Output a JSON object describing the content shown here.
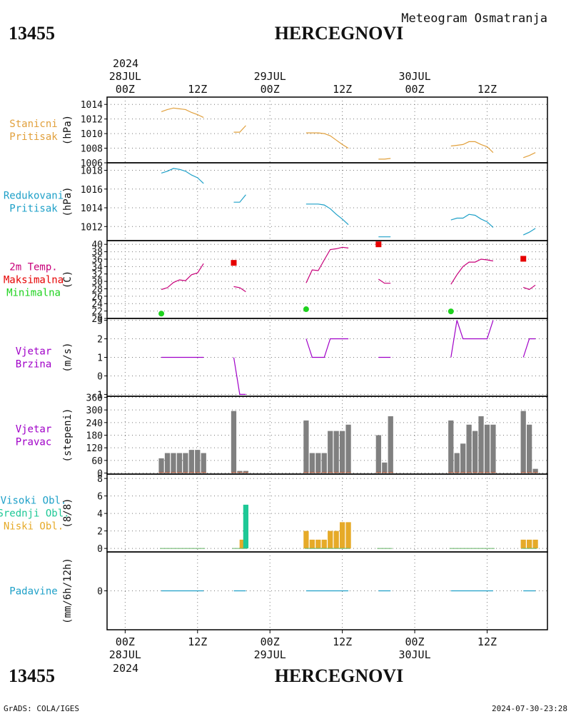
{
  "header": {
    "station_id": "13455",
    "station_name": "HERCEGNOVI",
    "subtitle": "Meteogram Osmatranja",
    "top_year": "2024"
  },
  "footer": {
    "station_id": "13455",
    "station_name": "HERCEGNOVI",
    "bottom_year": "2024",
    "credit": "GrADS: COLA/IGES",
    "timestamp": "2024-07-30-23:28"
  },
  "time_axis": {
    "top_dates": [
      "28JUL",
      "29JUL",
      "30JUL"
    ],
    "bottom_dates": [
      "28JUL",
      "29JUL",
      "30JUL"
    ],
    "ticks": [
      "00Z",
      "12Z",
      "00Z",
      "12Z",
      "00Z",
      "12Z"
    ],
    "tick_hours": [
      0,
      12,
      24,
      36,
      48,
      60
    ],
    "x_range_hours": [
      -3,
      70
    ]
  },
  "colors": {
    "orange": "#e1a03c",
    "cyan": "#1ea0c8",
    "magenta": "#c8007a",
    "red": "#e60000",
    "green": "#1ed21e",
    "purple": "#a000c8",
    "gray": "#808080",
    "teal": "#1ec896",
    "gold": "#e6aa28"
  },
  "chart_data": [
    {
      "type": "line",
      "panel_key": "pritisak",
      "label_lines": [
        "Stanicni",
        "Pritisak"
      ],
      "label_color": "#e1a03c",
      "ylabel": "(hPa)",
      "ylim": [
        1006,
        1015
      ],
      "yticks": [
        1006,
        1008,
        1010,
        1012,
        1014
      ],
      "series": [
        {
          "color": "#e1a03c",
          "segments": [
            [
              [
                6,
                1013.0
              ],
              [
                7,
                1013.3
              ],
              [
                8,
                1013.5
              ],
              [
                9,
                1013.4
              ],
              [
                10,
                1013.3
              ],
              [
                11,
                1012.9
              ],
              [
                12,
                1012.6
              ],
              [
                13,
                1012.2
              ]
            ],
            [
              [
                18,
                1010.2
              ],
              [
                19,
                1010.2
              ],
              [
                20,
                1011.1
              ]
            ],
            [
              [
                30,
                1010.1
              ],
              [
                31,
                1010.1
              ],
              [
                32,
                1010.1
              ],
              [
                33,
                1010.0
              ],
              [
                34,
                1009.7
              ],
              [
                35,
                1009.1
              ],
              [
                36,
                1008.5
              ],
              [
                37,
                1008.0
              ]
            ],
            [
              [
                42,
                1006.5
              ],
              [
                43,
                1006.5
              ],
              [
                44,
                1006.6
              ]
            ],
            [
              [
                54,
                1008.3
              ],
              [
                55,
                1008.4
              ],
              [
                56,
                1008.5
              ],
              [
                57,
                1008.9
              ],
              [
                58,
                1008.9
              ],
              [
                59,
                1008.5
              ],
              [
                60,
                1008.2
              ],
              [
                61,
                1007.4
              ]
            ],
            [
              [
                66,
                1006.7
              ],
              [
                67,
                1007.0
              ],
              [
                68,
                1007.4
              ]
            ]
          ]
        }
      ]
    },
    {
      "type": "line",
      "panel_key": "redukovani",
      "label_lines": [
        "Redukovani",
        "Pritisak"
      ],
      "label_color": "#1ea0c8",
      "ylabel": "(hPa)",
      "ylim": [
        1010.5,
        1018.8
      ],
      "yticks": [
        1012,
        1014,
        1016,
        1018
      ],
      "series": [
        {
          "color": "#1ea0c8",
          "segments": [
            [
              [
                6,
                1017.7
              ],
              [
                7,
                1017.9
              ],
              [
                8,
                1018.2
              ],
              [
                9,
                1018.1
              ],
              [
                10,
                1017.9
              ],
              [
                11,
                1017.5
              ],
              [
                12,
                1017.2
              ],
              [
                13,
                1016.6
              ]
            ],
            [
              [
                18,
                1014.6
              ],
              [
                19,
                1014.6
              ],
              [
                20,
                1015.4
              ]
            ],
            [
              [
                30,
                1014.4
              ],
              [
                31,
                1014.4
              ],
              [
                32,
                1014.4
              ],
              [
                33,
                1014.3
              ],
              [
                34,
                1013.9
              ],
              [
                35,
                1013.3
              ],
              [
                36,
                1012.8
              ],
              [
                37,
                1012.2
              ]
            ],
            [
              [
                42,
                1010.9
              ],
              [
                43,
                1010.9
              ],
              [
                44,
                1010.9
              ]
            ],
            [
              [
                54,
                1012.7
              ],
              [
                55,
                1012.9
              ],
              [
                56,
                1012.9
              ],
              [
                57,
                1013.3
              ],
              [
                58,
                1013.2
              ],
              [
                59,
                1012.8
              ],
              [
                60,
                1012.5
              ],
              [
                61,
                1011.9
              ]
            ],
            [
              [
                66,
                1011.1
              ],
              [
                67,
                1011.4
              ],
              [
                68,
                1011.8
              ]
            ]
          ]
        }
      ]
    },
    {
      "type": "line",
      "panel_key": "temperatura",
      "label_lines": [
        "2m Temp.",
        "Maksimalna",
        "Minimalna"
      ],
      "label_colors": [
        "#c8007a",
        "#e60000",
        "#1ed21e"
      ],
      "ylabel": "(C)",
      "ylim": [
        20,
        41
      ],
      "yticks": [
        20,
        22,
        24,
        26,
        28,
        30,
        32,
        34,
        36,
        38,
        40
      ],
      "series": [
        {
          "color": "#c8007a",
          "segments": [
            [
              [
                6,
                27.8
              ],
              [
                7,
                28.3
              ],
              [
                8,
                29.7
              ],
              [
                9,
                30.4
              ],
              [
                10,
                30.2
              ],
              [
                11,
                31.8
              ],
              [
                12,
                32.3
              ],
              [
                13,
                34.8
              ]
            ],
            [
              [
                18,
                28.6
              ],
              [
                19,
                28.3
              ],
              [
                20,
                27.2
              ]
            ],
            [
              [
                30,
                29.6
              ],
              [
                31,
                33.1
              ],
              [
                32,
                32.9
              ],
              [
                33,
                35.8
              ],
              [
                34,
                38.6
              ],
              [
                35,
                38.8
              ],
              [
                36,
                39.2
              ],
              [
                37,
                39.0
              ]
            ],
            [
              [
                42,
                30.6
              ],
              [
                43,
                29.5
              ],
              [
                44,
                29.5
              ]
            ],
            [
              [
                54,
                29.2
              ],
              [
                55,
                31.8
              ],
              [
                56,
                34.0
              ],
              [
                57,
                35.2
              ],
              [
                58,
                35.2
              ],
              [
                59,
                36.0
              ],
              [
                60,
                35.8
              ],
              [
                61,
                35.5
              ]
            ],
            [
              [
                66,
                28.4
              ],
              [
                67,
                27.8
              ],
              [
                68,
                29.0
              ]
            ]
          ]
        }
      ],
      "maxima": [
        [
          18,
          35.0
        ],
        [
          42,
          40.0
        ],
        [
          66,
          36.1
        ]
      ],
      "minima": [
        [
          6,
          21.3
        ],
        [
          30,
          22.5
        ],
        [
          54,
          21.9
        ]
      ]
    },
    {
      "type": "line",
      "panel_key": "vjetar_brzina",
      "label_lines": [
        "Vjetar",
        "Brzina"
      ],
      "label_color": "#a000c8",
      "ylabel": "(m/s)",
      "ylim": [
        -1.1,
        3.1
      ],
      "yticks": [
        -1,
        0,
        1,
        2,
        3
      ],
      "series": [
        {
          "color": "#a000c8",
          "segments": [
            [
              [
                6,
                1
              ],
              [
                7,
                1
              ],
              [
                8,
                1
              ],
              [
                9,
                1
              ],
              [
                10,
                1
              ],
              [
                11,
                1
              ],
              [
                12,
                1
              ],
              [
                13,
                1
              ]
            ],
            [
              [
                18,
                1
              ],
              [
                19,
                -1
              ],
              [
                20,
                -1
              ]
            ],
            [
              [
                30,
                2
              ],
              [
                31,
                1
              ],
              [
                32,
                1
              ],
              [
                33,
                1
              ],
              [
                34,
                2
              ],
              [
                35,
                2
              ],
              [
                36,
                2
              ],
              [
                37,
                2
              ]
            ],
            [
              [
                42,
                1
              ],
              [
                43,
                1
              ],
              [
                44,
                1
              ]
            ],
            [
              [
                54,
                1
              ],
              [
                55,
                3
              ],
              [
                56,
                2
              ],
              [
                57,
                2
              ],
              [
                58,
                2
              ],
              [
                59,
                2
              ],
              [
                60,
                2
              ],
              [
                61,
                3
              ]
            ],
            [
              [
                66,
                1
              ],
              [
                67,
                2
              ],
              [
                68,
                2
              ]
            ]
          ]
        }
      ]
    },
    {
      "type": "bar",
      "panel_key": "vjetar_pravac",
      "label_lines": [
        "Vjetar",
        "Pravac"
      ],
      "label_color": "#a000c8",
      "ylabel": "(stepeni)",
      "ylim": [
        -5,
        365
      ],
      "yticks": [
        0,
        60,
        120,
        180,
        240,
        300,
        360
      ],
      "bar_color": "#808080",
      "bars": [
        [
          6,
          70
        ],
        [
          7,
          95
        ],
        [
          8,
          95
        ],
        [
          9,
          95
        ],
        [
          10,
          95
        ],
        [
          11,
          110
        ],
        [
          12,
          110
        ],
        [
          13,
          95
        ],
        [
          18,
          295
        ],
        [
          19,
          10
        ],
        [
          20,
          10
        ],
        [
          30,
          250
        ],
        [
          31,
          95
        ],
        [
          32,
          95
        ],
        [
          33,
          95
        ],
        [
          34,
          200
        ],
        [
          35,
          200
        ],
        [
          36,
          200
        ],
        [
          37,
          230
        ],
        [
          42,
          180
        ],
        [
          43,
          50
        ],
        [
          44,
          270
        ],
        [
          54,
          250
        ],
        [
          55,
          95
        ],
        [
          56,
          140
        ],
        [
          57,
          230
        ],
        [
          58,
          200
        ],
        [
          59,
          270
        ],
        [
          60,
          230
        ],
        [
          61,
          230
        ],
        [
          66,
          295
        ],
        [
          67,
          230
        ],
        [
          68,
          20
        ]
      ]
    },
    {
      "type": "bar",
      "panel_key": "oblacnost",
      "label_lines": [
        "Visoki Obl.",
        "Srednji Obl.",
        "Niski Obl."
      ],
      "label_colors": [
        "#1ea0c8",
        "#1ec896",
        "#e6aa28"
      ],
      "ylabel": "(8/8)",
      "ylim": [
        -0.4,
        8.5
      ],
      "yticks": [
        0,
        2,
        4,
        6,
        8
      ],
      "bars": [
        [
          19.4,
          1,
          "#e6aa28"
        ],
        [
          20,
          5,
          "#1ec896"
        ],
        [
          30,
          2,
          "#e6aa28"
        ],
        [
          31,
          1,
          "#e6aa28"
        ],
        [
          32,
          1,
          "#e6aa28"
        ],
        [
          33,
          1,
          "#e6aa28"
        ],
        [
          34,
          2,
          "#e6aa28"
        ],
        [
          35,
          2,
          "#e6aa28"
        ],
        [
          36,
          3,
          "#e6aa28"
        ],
        [
          37,
          3,
          "#e6aa28"
        ],
        [
          66,
          1,
          "#e6aa28"
        ],
        [
          67,
          1,
          "#e6aa28"
        ],
        [
          68,
          1,
          "#e6aa28"
        ]
      ]
    },
    {
      "type": "line",
      "panel_key": "padavine",
      "label_lines": [
        "Padavine"
      ],
      "label_color": "#1ea0c8",
      "ylabel": "(mm/6h/12h)",
      "ylim": [
        -4.5,
        4.5
      ],
      "yticks": [
        0
      ],
      "series": [
        {
          "color": "#1ea0c8",
          "segments": [
            [
              [
                6,
                0
              ],
              [
                13,
                0
              ]
            ],
            [
              [
                18,
                0
              ],
              [
                20,
                0
              ]
            ],
            [
              [
                30,
                0
              ],
              [
                37,
                0
              ]
            ],
            [
              [
                42,
                0
              ],
              [
                44,
                0
              ]
            ],
            [
              [
                54,
                0
              ],
              [
                61,
                0
              ]
            ],
            [
              [
                66,
                0
              ],
              [
                68,
                0
              ]
            ]
          ]
        }
      ]
    }
  ]
}
